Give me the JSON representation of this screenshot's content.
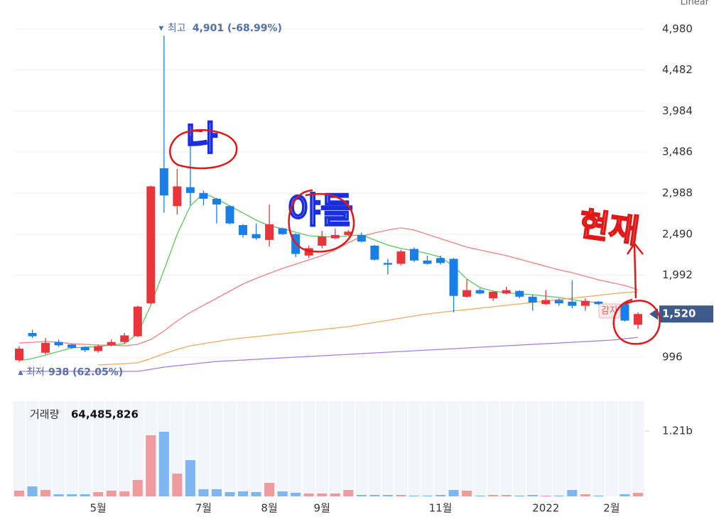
{
  "chart_data": {
    "type": "candlestick",
    "scale_label": "Linear",
    "up_color": "#e8343a",
    "down_color": "#1a7ee8",
    "categories": [
      null,
      null,
      null,
      null,
      null,
      null,
      "5월",
      null,
      null,
      null,
      null,
      null,
      null,
      null,
      "7월",
      null,
      null,
      null,
      null,
      "8월",
      null,
      null,
      null,
      "9월",
      null,
      null,
      null,
      null,
      null,
      null,
      null,
      null,
      "11월",
      null,
      null,
      null,
      null,
      null,
      null,
      null,
      "2022",
      null,
      null,
      null,
      null,
      "2월",
      null,
      null
    ],
    "open": [
      960,
      1290,
      1050,
      1180,
      1150,
      1120,
      1070,
      1140,
      1180,
      1250,
      1650,
      3290,
      2830,
      3060,
      2990,
      2920,
      2830,
      2600,
      2490,
      2420,
      2560,
      2490,
      2230,
      2350,
      2440,
      2480,
      2480,
      2350,
      2140,
      2130,
      2310,
      2170,
      2200,
      2190,
      1730,
      1810,
      1710,
      1770,
      1800,
      1730,
      1640,
      1690,
      1670,
      1620,
      1670,
      null,
      1640,
      1390
    ],
    "high": [
      1130,
      1330,
      1230,
      1210,
      1160,
      1130,
      1150,
      1210,
      1290,
      1620,
      3080,
      4901,
      3280,
      3680,
      3020,
      2930,
      2840,
      2610,
      2620,
      2850,
      2570,
      2500,
      2350,
      2530,
      2560,
      2540,
      2510,
      2360,
      2190,
      2300,
      2330,
      2230,
      2230,
      2200,
      1940,
      1830,
      1800,
      1850,
      1810,
      1750,
      1810,
      1710,
      1930,
      1710,
      1680,
      null,
      1660,
      1540
    ],
    "low": [
      938,
      1230,
      1030,
      1120,
      1100,
      1060,
      1050,
      1130,
      1160,
      1240,
      1640,
      2750,
      2730,
      2840,
      2840,
      2620,
      2610,
      2450,
      2420,
      2340,
      2480,
      2210,
      2200,
      2320,
      2430,
      2470,
      2390,
      2170,
      2000,
      2110,
      2150,
      2120,
      2120,
      1540,
      1720,
      1760,
      1680,
      1760,
      1710,
      1560,
      1630,
      1620,
      1590,
      1560,
      1630,
      null,
      1430,
      1340
    ],
    "close": [
      1100,
      1250,
      1170,
      1140,
      1110,
      1080,
      1130,
      1180,
      1260,
      1610,
      3070,
      2960,
      3070,
      2990,
      2920,
      2850,
      2620,
      2480,
      2440,
      2610,
      2490,
      2250,
      2320,
      2460,
      2480,
      2520,
      2400,
      2180,
      2120,
      2280,
      2170,
      2130,
      2140,
      1740,
      1810,
      1770,
      1790,
      1810,
      1730,
      1660,
      1690,
      1650,
      1620,
      1680,
      1640,
      null,
      1440,
      1520
    ],
    "moving_averages": [
      {
        "color": "#5cc85c",
        "values": [
          953,
          979,
          1022,
          1065,
          1108,
          1117,
          1125,
          1143,
          1160,
          1281,
          1626,
          2057,
          2488,
          2833,
          2988,
          2919,
          2833,
          2747,
          2660,
          2591,
          2557,
          2514,
          2471,
          2462,
          2453,
          2471,
          2479,
          2419,
          2358,
          2315,
          2290,
          2255,
          2212,
          2100,
          1945,
          1841,
          1798,
          1781,
          1764,
          1755,
          1738,
          1720,
          1695,
          1669,
          1660,
          null,
          null,
          null
        ]
      },
      {
        "color": "#f08080",
        "values": [
          1168,
          1177,
          1186,
          1177,
          1160,
          1151,
          1143,
          1143,
          1134,
          1151,
          1212,
          1315,
          1436,
          1539,
          1626,
          1712,
          1798,
          1884,
          1953,
          2014,
          2074,
          2126,
          2177,
          2229,
          2298,
          2384,
          2462,
          2505,
          2540,
          2566,
          2540,
          2488,
          2436,
          2384,
          2333,
          2298,
          2264,
          2229,
          2186,
          2143,
          2100,
          2057,
          2022,
          1979,
          1936,
          1901,
          1867,
          1815
        ]
      },
      {
        "color": "#f4a860",
        "values": [
          null,
          null,
          null,
          null,
          null,
          null,
          901,
          910,
          918,
          927,
          979,
          1039,
          1091,
          1134,
          1160,
          1186,
          1212,
          1229,
          1246,
          1263,
          1281,
          1298,
          1315,
          1332,
          1350,
          1367,
          1393,
          1419,
          1444,
          1470,
          1496,
          1522,
          1539,
          1557,
          1574,
          1591,
          1608,
          1626,
          1643,
          1660,
          1677,
          1695,
          1712,
          1729,
          1746,
          1764,
          1781,
          1789
        ]
      },
      {
        "color": "#a87ae8",
        "values": [
          824,
          824,
          824,
          824,
          824,
          824,
          824,
          824,
          824,
          824,
          849,
          875,
          893,
          910,
          927,
          944,
          953,
          961,
          970,
          979,
          987,
          996,
          1005,
          1013,
          1022,
          1030,
          1039,
          1048,
          1056,
          1065,
          1074,
          1082,
          1091,
          1099,
          1108,
          1117,
          1125,
          1134,
          1143,
          1151,
          1160,
          1168,
          1177,
          1186,
          1194,
          1203,
          1220,
          1237
        ]
      }
    ],
    "ylim": [
      677,
      5161
    ],
    "yticks": [
      {
        "value": 996,
        "label": "996"
      },
      {
        "value": 1992,
        "label": "1,992"
      },
      {
        "value": 2490,
        "label": "2,490"
      },
      {
        "value": 2988,
        "label": "2,988"
      },
      {
        "value": 3486,
        "label": "3,486"
      },
      {
        "value": 3984,
        "label": "3,984"
      },
      {
        "value": 4482,
        "label": "4,482"
      },
      {
        "value": 4980,
        "label": "4,980"
      }
    ],
    "current_price": {
      "value": 1520,
      "label": "1,520"
    },
    "high_annotation": {
      "label": "최고",
      "value": 4901,
      "text": "4,901 (-68.99%)"
    },
    "low_annotation": {
      "label": "최저",
      "value": 938,
      "text": "938 (62.05%)"
    },
    "event_label": "감자",
    "volume": {
      "title": "거래량",
      "current": {
        "value": 64485826,
        "label": "64,485,826"
      },
      "values": [
        105000000,
        184000000,
        118000000,
        39000000,
        39000000,
        39000000,
        79000000,
        105000000,
        92000000,
        302000000,
        1131000000,
        1197000000,
        421000000,
        671000000,
        132000000,
        132000000,
        79000000,
        92000000,
        79000000,
        250000000,
        92000000,
        66000000,
        53000000,
        53000000,
        53000000,
        118000000,
        26000000,
        26000000,
        26000000,
        26000000,
        13000000,
        13000000,
        26000000,
        118000000,
        105000000,
        13000000,
        26000000,
        26000000,
        13000000,
        26000000,
        13000000,
        13000000,
        118000000,
        39000000,
        13000000,
        null,
        39000000,
        64485826
      ],
      "ylim": [
        0,
        1762000000
      ],
      "yticks": [
        {
          "value": 1210000000,
          "label": "1.21b"
        }
      ]
    },
    "handwriting": [
      {
        "text": "나",
        "color": "#1a2ee0"
      },
      {
        "text": "야들",
        "color": "#1a2ee0"
      },
      {
        "text": "현재",
        "color": "#e01818"
      }
    ]
  }
}
